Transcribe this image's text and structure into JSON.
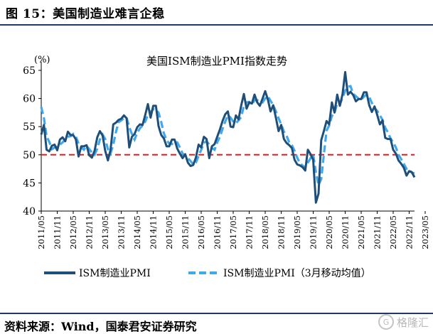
{
  "figure": {
    "title": "图 15：美国制造业难言企稳",
    "source": "资料来源：Wind，国泰君安证券研究",
    "watermark": "格隆汇"
  },
  "colors": {
    "pmi": "#1f4e79",
    "ma3": "#3fa9ef",
    "threshold": "#e02020",
    "rule": "#1f3a66"
  },
  "chart_data": {
    "type": "line",
    "title": "美国ISM制造业PMI指数走势",
    "ylabel": "(%)",
    "ylim": [
      40,
      65
    ],
    "yticks": [
      40,
      45,
      50,
      55,
      60,
      65
    ],
    "start": "2011/05",
    "xtick_labels": [
      "2011/05",
      "2011/11",
      "2012/05",
      "2012/11",
      "2013/05",
      "2013/11",
      "2014/05",
      "2014/11",
      "2015/05",
      "2015/11",
      "2016/05",
      "2016/11",
      "2017/05",
      "2017/11",
      "2018/05",
      "2018/11",
      "2019/05",
      "2019/11",
      "2020/05",
      "2020/11",
      "2021/05",
      "2021/11",
      "2022/05",
      "2022/11",
      "2023/05"
    ],
    "reference_line": 50,
    "legend_position": "bottom",
    "series": [
      {
        "name": "ISM制造业PMI",
        "style": "solid",
        "values": [
          53.6,
          55.3,
          50.9,
          50.6,
          51.6,
          51.8,
          50.8,
          52.7,
          53.1,
          52.4,
          54.1,
          53.5,
          53.5,
          52.7,
          49.7,
          51.5,
          51.5,
          51.7,
          49.9,
          49.5,
          50.7,
          53.1,
          54.2,
          53.4,
          50.7,
          49.0,
          50.9,
          55.4,
          55.7,
          56.2,
          56.4,
          57.0,
          56.5,
          51.3,
          53.2,
          53.7,
          54.9,
          55.4,
          55.3,
          57.1,
          59.0,
          56.6,
          58.7,
          58.7,
          55.1,
          53.5,
          52.9,
          51.5,
          51.5,
          52.7,
          52.7,
          51.1,
          50.2,
          49.4,
          50.1,
          48.6,
          48.0,
          48.2,
          49.5,
          51.8,
          51.3,
          53.2,
          52.8,
          49.4,
          51.5,
          51.9,
          53.2,
          54.5,
          56.0,
          57.2,
          57.7,
          55.0,
          54.9,
          57.0,
          56.3,
          58.8,
          60.8,
          58.2,
          59.3,
          59.1,
          60.7,
          59.3,
          58.7,
          60.0,
          61.3,
          59.8,
          57.7,
          58.8,
          56.6,
          54.2,
          55.3,
          52.8,
          52.1,
          51.7,
          51.2,
          49.1,
          48.3,
          48.1,
          47.8,
          47.2,
          50.9,
          50.1,
          49.1,
          41.5,
          43.1,
          52.6,
          54.2,
          56.0,
          55.4,
          59.3,
          57.5,
          60.7,
          58.7,
          60.8,
          64.7,
          60.7,
          61.2,
          60.6,
          59.5,
          59.9,
          59.9,
          61.1,
          61.1,
          58.8,
          57.6,
          58.6,
          57.1,
          55.4,
          56.1,
          53.0,
          52.8,
          52.8,
          50.9,
          50.2,
          49.0,
          48.4,
          47.7,
          46.3,
          47.1,
          46.9,
          46.0
        ]
      },
      {
        "name": "ISM制造业PMI（3月移动均值）",
        "style": "dashed",
        "values": [
          58.5,
          56.5,
          53.3,
          52.3,
          51.0,
          51.3,
          51.4,
          51.8,
          52.2,
          52.7,
          53.2,
          53.3,
          53.7,
          53.2,
          52.0,
          51.3,
          50.9,
          51.6,
          51.0,
          50.4,
          50.0,
          51.1,
          52.7,
          53.6,
          52.8,
          51.0,
          50.2,
          51.8,
          54.0,
          55.8,
          56.1,
          56.5,
          56.6,
          54.9,
          53.7,
          52.7,
          53.9,
          54.7,
          55.2,
          55.9,
          57.1,
          57.6,
          58.1,
          58.0,
          57.5,
          55.8,
          53.8,
          52.6,
          52.0,
          51.9,
          52.3,
          52.2,
          51.3,
          50.2,
          49.9,
          49.4,
          48.9,
          48.3,
          48.6,
          49.8,
          50.9,
          52.1,
          52.4,
          51.8,
          51.2,
          50.9,
          52.2,
          53.2,
          54.6,
          55.9,
          57.0,
          56.6,
          55.9,
          55.6,
          56.1,
          56.7,
          58.7,
          59.3,
          59.4,
          58.9,
          59.7,
          59.7,
          59.6,
          59.3,
          60.0,
          60.4,
          59.6,
          58.8,
          57.7,
          56.5,
          55.4,
          54.1,
          53.4,
          52.2,
          51.7,
          50.7,
          49.5,
          48.5,
          48.1,
          47.7,
          48.6,
          49.4,
          50.0,
          46.9,
          44.6,
          45.7,
          50.0,
          54.3,
          55.2,
          56.9,
          57.4,
          59.2,
          59.0,
          60.1,
          61.4,
          62.1,
          62.2,
          60.8,
          60.4,
          60.0,
          59.8,
          60.3,
          60.7,
          60.3,
          59.2,
          58.3,
          57.8,
          57.0,
          56.2,
          54.8,
          54.0,
          52.9,
          52.2,
          51.3,
          50.0,
          49.2,
          48.4,
          47.5,
          47.4,
          46.8,
          46.7
        ]
      }
    ]
  }
}
